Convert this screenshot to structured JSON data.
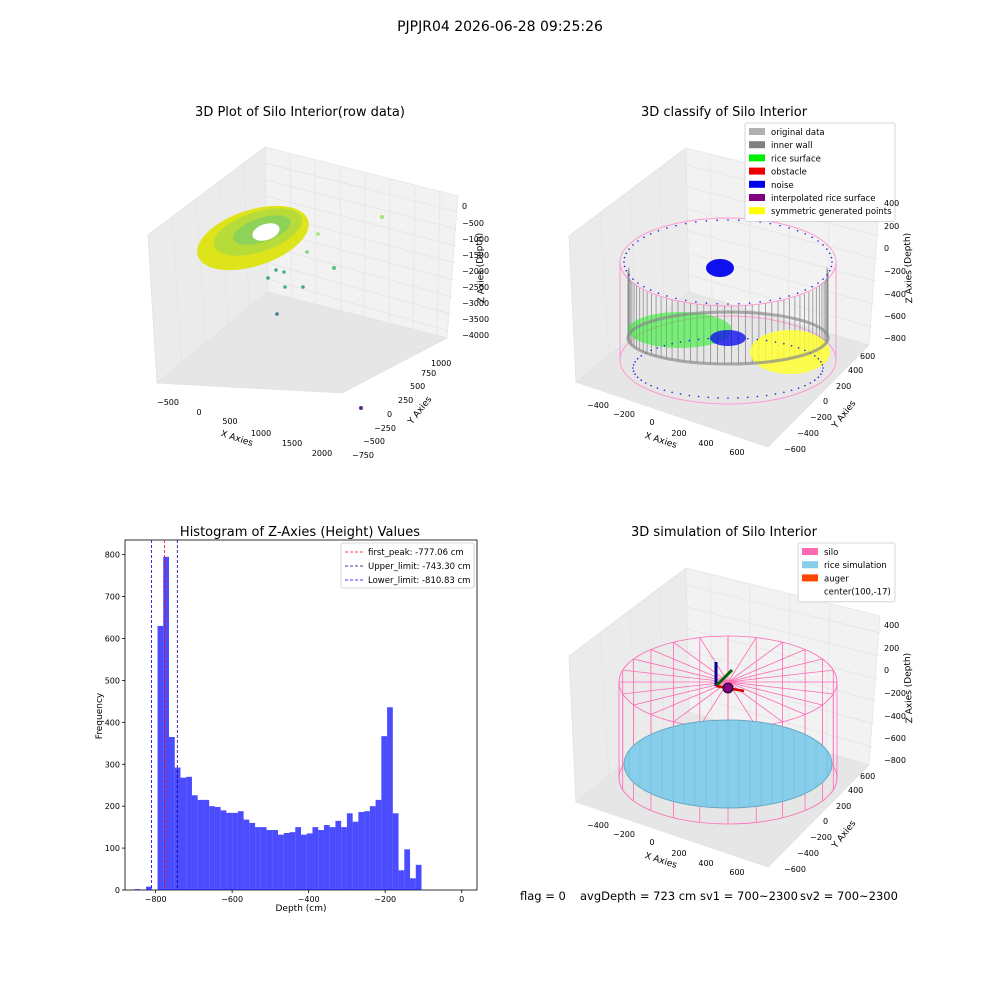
{
  "suptitle": "PJPJR04 2026-06-28 09:25:26",
  "panels": {
    "raw": {
      "title": "3D Plot of Silo Interior(row data)",
      "xlabel": "X Axies",
      "ylabel": "Y Axies",
      "zlabel": "Z Axies (Depth)",
      "xticks": [
        "-500",
        "0",
        "500",
        "1000",
        "1500",
        "2000"
      ],
      "yticks": [
        "-750",
        "-500",
        "-250",
        "0",
        "250",
        "500",
        "750",
        "1000"
      ],
      "zticks": [
        "0",
        "-500",
        "-1000",
        "-1500",
        "-2000",
        "-2500",
        "-3000",
        "-3500",
        "-4000"
      ]
    },
    "classify": {
      "title": "3D classify of Silo Interior",
      "xlabel": "X Axies",
      "ylabel": "Y Axies",
      "zlabel": "Z Axies (Depth)",
      "xticks": [
        "-400",
        "-200",
        "0",
        "200",
        "400",
        "600"
      ],
      "yticks": [
        "-600",
        "-400",
        "-200",
        "0",
        "200",
        "400",
        "600"
      ],
      "zticks": [
        "400",
        "200",
        "0",
        "-200",
        "-400",
        "-600",
        "-800"
      ],
      "legend": [
        {
          "label": "original data",
          "color": "#b0b0b0"
        },
        {
          "label": "inner wall",
          "color": "#808080"
        },
        {
          "label": "rice surface",
          "color": "#00ee00"
        },
        {
          "label": "obstacle",
          "color": "#ee0000"
        },
        {
          "label": "noise",
          "color": "#0000ee"
        },
        {
          "label": "interpolated rice surface",
          "color": "#800080"
        },
        {
          "label": "symmetric generated points",
          "color": "#ffff00"
        }
      ]
    },
    "simulation": {
      "title": "3D simulation of Silo Interior",
      "xlabel": "X Axies",
      "ylabel": "Y Axies",
      "zlabel": "Z Axies (Depth)",
      "xticks": [
        "-400",
        "-200",
        "0",
        "200",
        "400",
        "600"
      ],
      "yticks": [
        "-600",
        "-400",
        "-200",
        "0",
        "200",
        "400",
        "600"
      ],
      "zticks": [
        "400",
        "200",
        "0",
        "-200",
        "-400",
        "-600",
        "-800"
      ],
      "legend": [
        {
          "label": "silo",
          "color": "#ff69b4"
        },
        {
          "label": "rice simulation",
          "color": "#87ceeb"
        },
        {
          "label": "auger",
          "color": "#ff4500"
        },
        {
          "label": "center(100,-17)",
          "color": ""
        }
      ]
    }
  },
  "chart_data": [
    {
      "type": "bar",
      "title": "Histogram of Z-Axies (Height) Values",
      "xlabel": "Depth (cm)",
      "ylabel": "Frequency",
      "xlim": [
        -880,
        40
      ],
      "ylim": [
        0,
        835
      ],
      "bar_color": "#0000ff",
      "bar_opacity": 0.7,
      "bin_width": 15,
      "xticks": [
        -800,
        -600,
        -400,
        -200,
        0
      ],
      "yticks": [
        0,
        100,
        200,
        300,
        400,
        500,
        600,
        700,
        800
      ],
      "bins": [
        {
          "x0": -855,
          "value": 2
        },
        {
          "x0": -825,
          "value": 8
        },
        {
          "x0": -795,
          "value": 630
        },
        {
          "x0": -780,
          "value": 795
        },
        {
          "x0": -765,
          "value": 365
        },
        {
          "x0": -750,
          "value": 292
        },
        {
          "x0": -735,
          "value": 268
        },
        {
          "x0": -720,
          "value": 270
        },
        {
          "x0": -705,
          "value": 226
        },
        {
          "x0": -690,
          "value": 215
        },
        {
          "x0": -675,
          "value": 215
        },
        {
          "x0": -660,
          "value": 200
        },
        {
          "x0": -645,
          "value": 198
        },
        {
          "x0": -630,
          "value": 190
        },
        {
          "x0": -615,
          "value": 184
        },
        {
          "x0": -600,
          "value": 184
        },
        {
          "x0": -585,
          "value": 188
        },
        {
          "x0": -570,
          "value": 168
        },
        {
          "x0": -555,
          "value": 160
        },
        {
          "x0": -540,
          "value": 150
        },
        {
          "x0": -525,
          "value": 150
        },
        {
          "x0": -510,
          "value": 143
        },
        {
          "x0": -495,
          "value": 143
        },
        {
          "x0": -480,
          "value": 132
        },
        {
          "x0": -465,
          "value": 136
        },
        {
          "x0": -450,
          "value": 138
        },
        {
          "x0": -435,
          "value": 150
        },
        {
          "x0": -420,
          "value": 132
        },
        {
          "x0": -405,
          "value": 135
        },
        {
          "x0": -390,
          "value": 150
        },
        {
          "x0": -375,
          "value": 143
        },
        {
          "x0": -360,
          "value": 155
        },
        {
          "x0": -345,
          "value": 150
        },
        {
          "x0": -330,
          "value": 165
        },
        {
          "x0": -315,
          "value": 150
        },
        {
          "x0": -300,
          "value": 183
        },
        {
          "x0": -285,
          "value": 163
        },
        {
          "x0": -270,
          "value": 186
        },
        {
          "x0": -255,
          "value": 188
        },
        {
          "x0": -240,
          "value": 200
        },
        {
          "x0": -225,
          "value": 215
        },
        {
          "x0": -210,
          "value": 367
        },
        {
          "x0": -195,
          "value": 436
        },
        {
          "x0": -180,
          "value": 183
        },
        {
          "x0": -165,
          "value": 47
        },
        {
          "x0": -150,
          "value": 97
        },
        {
          "x0": -135,
          "value": 28
        },
        {
          "x0": -120,
          "value": 60
        }
      ],
      "vlines": [
        {
          "label": "first_peak: -777.06 cm",
          "x": -777.06,
          "color": "#ff0000"
        },
        {
          "label": "Upper_limit: -743.30 cm",
          "x": -743.3,
          "color": "#00008b"
        },
        {
          "label": "Lower_limit: -810.83 cm",
          "x": -810.83,
          "color": "#0000ff"
        }
      ]
    }
  ],
  "status": {
    "flag": "flag = 0",
    "avg_depth": "avgDepth = 723 cm",
    "sv1": "sv1 = 700~2300",
    "sv2": "sv2 = 700~2300"
  }
}
